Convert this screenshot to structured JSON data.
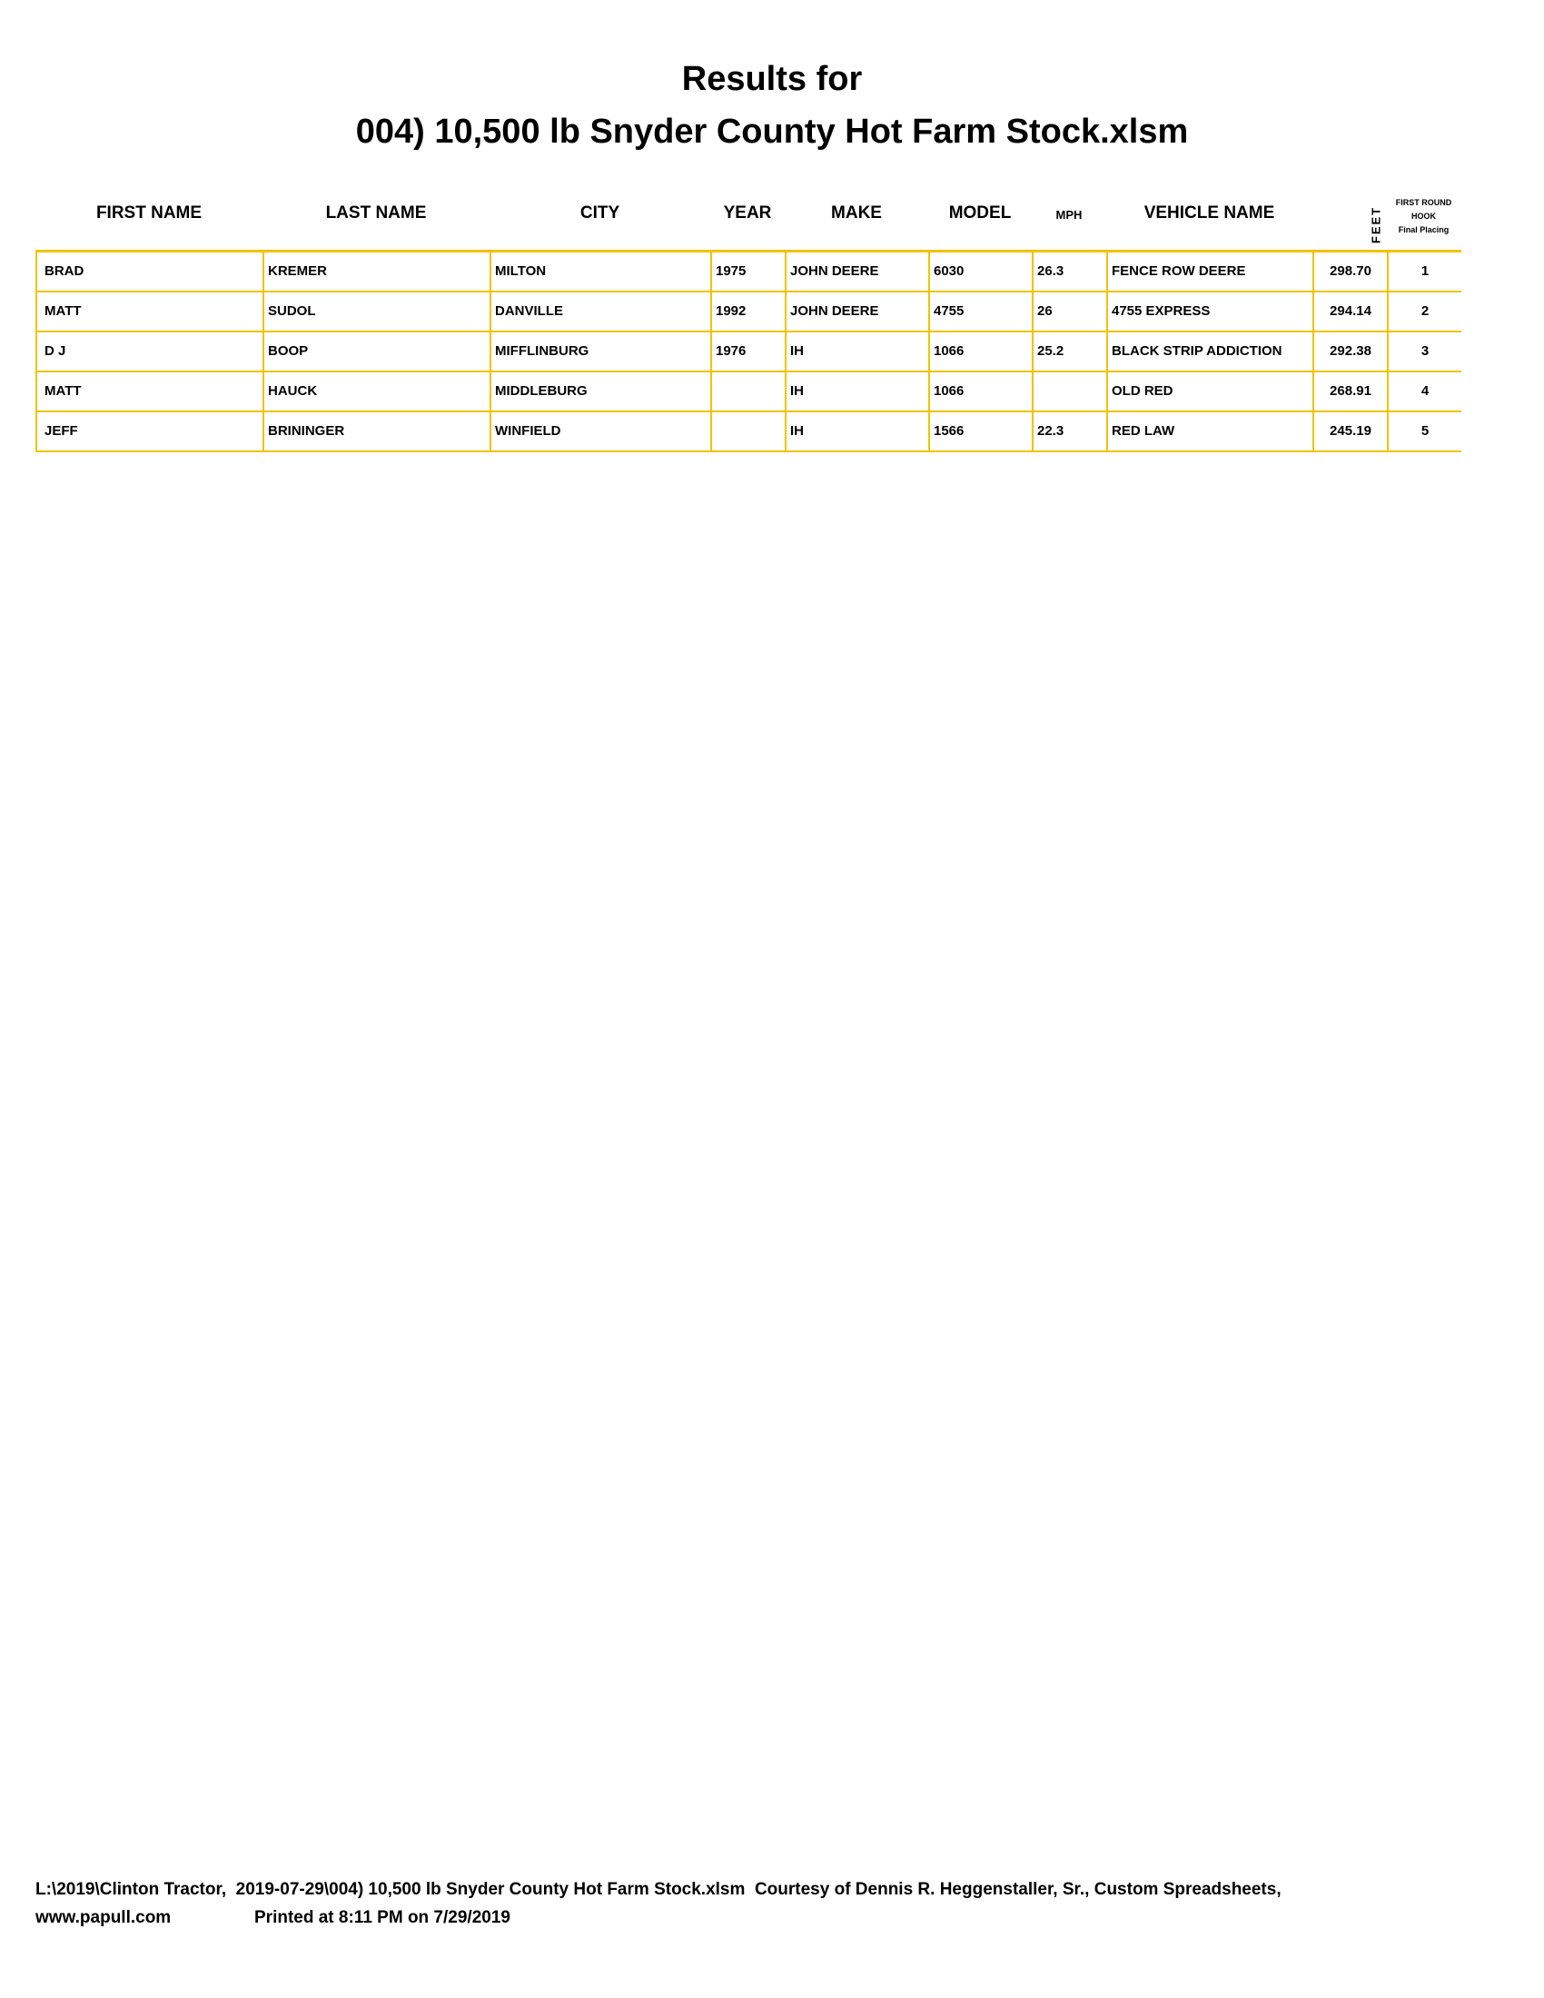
{
  "title": {
    "line1": "Results for",
    "line2": "004) 10,500 lb Snyder County Hot Farm Stock.xlsm"
  },
  "columns": [
    "FIRST NAME",
    "LAST NAME",
    "CITY",
    "YEAR",
    "MAKE",
    "MODEL",
    "MPH",
    "VEHICLE NAME",
    "FEET"
  ],
  "placing_header": {
    "line1": "FIRST ROUND",
    "line2": "HOOK",
    "line3": "Final Placing"
  },
  "rows": [
    [
      "BRAD",
      "KREMER",
      "MILTON",
      "1975",
      "JOHN DEERE",
      "6030",
      "26.3",
      "FENCE ROW DEERE",
      "298.70",
      "1"
    ],
    [
      "MATT",
      "SUDOL",
      "DANVILLE",
      "1992",
      "JOHN DEERE",
      "4755",
      "26",
      "4755 EXPRESS",
      "294.14",
      "2"
    ],
    [
      "D J",
      "BOOP",
      "MIFFLINBURG",
      "1976",
      "IH",
      "1066",
      "25.2",
      "BLACK STRIP ADDICTION",
      "292.38",
      "3"
    ],
    [
      "MATT",
      "HAUCK",
      "MIDDLEBURG",
      "",
      "IH",
      "1066",
      "",
      "OLD RED",
      "268.91",
      "4"
    ],
    [
      "JEFF",
      "BRININGER",
      "WINFIELD",
      "",
      "IH",
      "1566",
      "22.3",
      "RED LAW",
      "245.19",
      "5"
    ]
  ],
  "footer": {
    "line1": "L:\\2019\\Clinton Tractor,  2019-07-29\\004) 10,500 lb Snyder County Hot Farm Stock.xlsm  Courtesy of Dennis R. Heggenstaller, Sr., Custom Spreadsheets,",
    "website": "www.papull.com",
    "printed": "Printed at 8:11 PM on 7/29/2019"
  },
  "colors": {
    "grid": "#f2c200"
  }
}
